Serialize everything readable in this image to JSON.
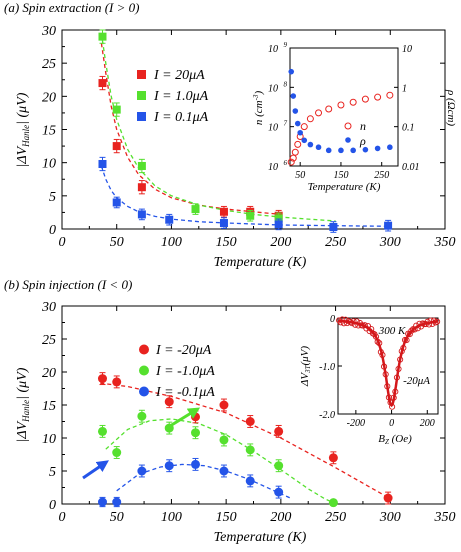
{
  "chart_data": [
    {
      "type": "scatter",
      "panel_title": "(a)  Spin extraction (I > 0)",
      "xlabel": "Temperature (K)",
      "ylabel": "|ΔV",
      "ylabel_sub": "Hanle",
      "ylabel_unit": "| (μV)",
      "xlim": [
        0,
        350
      ],
      "ylim": [
        0,
        30
      ],
      "x_ticks": [
        "0",
        "50",
        "100",
        "150",
        "200",
        "250",
        "300",
        "350"
      ],
      "y_ticks": [
        "0",
        "5",
        "10",
        "15",
        "20",
        "25",
        "30"
      ],
      "legend_position": "top-center",
      "series": [
        {
          "name": "I = 20μA",
          "color": "#e8231f",
          "x": [
            37,
            50,
            73,
            148,
            172,
            198
          ],
          "y": [
            22.0,
            12.5,
            6.3,
            2.6,
            2.6,
            2.0
          ],
          "err": [
            1.0,
            1.0,
            1.0,
            0.8,
            0.8,
            0.8
          ],
          "fit": [
            [
              36,
              28.0
            ],
            [
              40,
              23.5
            ],
            [
              45,
              18.5
            ],
            [
              50,
              15.0
            ],
            [
              60,
              10.8
            ],
            [
              70,
              8.2
            ],
            [
              85,
              6.0
            ],
            [
              100,
              4.7
            ],
            [
              125,
              3.6
            ],
            [
              150,
              3.0
            ],
            [
              175,
              2.6
            ],
            [
              200,
              2.2
            ]
          ]
        },
        {
          "name": "I = 1.0μA",
          "color": "#55e02e",
          "x": [
            37,
            50,
            73,
            122,
            172,
            198
          ],
          "y": [
            29.0,
            18.0,
            9.5,
            3.0,
            2.0,
            1.6
          ],
          "err": [
            1.0,
            1.0,
            1.0,
            0.8,
            0.8,
            0.8
          ],
          "fit": [
            [
              36,
              29.5
            ],
            [
              40,
              25.0
            ],
            [
              45,
              20.0
            ],
            [
              50,
              16.5
            ],
            [
              60,
              12.0
            ],
            [
              70,
              9.2
            ],
            [
              85,
              6.5
            ],
            [
              100,
              5.0
            ],
            [
              125,
              3.6
            ],
            [
              150,
              2.8
            ],
            [
              175,
              2.2
            ],
            [
              200,
              1.8
            ],
            [
              225,
              1.5
            ],
            [
              250,
              1.2
            ]
          ]
        },
        {
          "name": "I = 0.1μA",
          "color": "#2454e8",
          "x": [
            37,
            50,
            73,
            98,
            148,
            198,
            248,
            298
          ],
          "y": [
            9.8,
            4.0,
            2.2,
            1.4,
            0.9,
            0.7,
            0.3,
            0.5
          ],
          "err": [
            1.0,
            0.8,
            0.8,
            0.8,
            0.8,
            0.8,
            0.8,
            0.8
          ],
          "fit": [
            [
              36,
              9.5
            ],
            [
              40,
              7.5
            ],
            [
              45,
              5.8
            ],
            [
              50,
              4.7
            ],
            [
              60,
              3.4
            ],
            [
              70,
              2.6
            ],
            [
              85,
              1.9
            ],
            [
              100,
              1.5
            ],
            [
              125,
              1.1
            ],
            [
              150,
              0.9
            ],
            [
              200,
              0.6
            ],
            [
              250,
              0.5
            ],
            [
              300,
              0.4
            ]
          ]
        }
      ],
      "inset": {
        "type": "scatter",
        "xlabel": "Temperature (K)",
        "ylabel_left": "n (cm",
        "ylabel_left_sup": "-3",
        "ylabel_left_close": ")",
        "ylabel_right": "ρ (Ωcm)",
        "xlim": [
          25,
          290
        ],
        "x_ticks": [
          "50",
          "150",
          "250"
        ],
        "y_left_ticks": [
          {
            "label": "10",
            "sup": "9",
            "exp": 9
          },
          {
            "label": "10",
            "sup": "8",
            "exp": 8
          },
          {
            "label": "10",
            "sup": "7",
            "exp": 7
          },
          {
            "label": "10",
            "sup": "6",
            "exp": 6
          }
        ],
        "y_right_ticks": [
          {
            "label": "10",
            "value": 10
          },
          {
            "label": "1",
            "value": 1
          },
          {
            "label": "0.1",
            "value": 0.1
          },
          {
            "label": "0.01",
            "value": 0.01
          }
        ],
        "y_left_scale": "log",
        "y_right_scale": "log",
        "legend_position": "center-right",
        "series_n": {
          "name": "n",
          "color": "#e8231f",
          "marker": "open-circle",
          "x": [
            28,
            33,
            38,
            44,
            50,
            60,
            75,
            95,
            120,
            150,
            180,
            210,
            240,
            270
          ],
          "y_log10": [
            6.1,
            6.2,
            6.35,
            6.55,
            6.75,
            7.0,
            7.2,
            7.35,
            7.45,
            7.55,
            7.62,
            7.7,
            7.75,
            7.8
          ]
        },
        "series_rho": {
          "name": "ρ",
          "color": "#2454e8",
          "marker": "filled-circle",
          "x": [
            28,
            33,
            38,
            44,
            50,
            60,
            75,
            95,
            120,
            150,
            180,
            210,
            240,
            270
          ],
          "y": [
            2.5,
            0.6,
            0.25,
            0.12,
            0.07,
            0.045,
            0.035,
            0.03,
            0.025,
            0.025,
            0.025,
            0.026,
            0.028,
            0.03
          ]
        }
      }
    },
    {
      "type": "scatter",
      "panel_title": "(b)  Spin injection (I < 0)",
      "xlabel": "Temperature (K)",
      "ylabel": "|ΔV",
      "ylabel_sub": "Hanle",
      "ylabel_unit": "| (μV)",
      "xlim": [
        0,
        350
      ],
      "ylim": [
        0,
        30
      ],
      "x_ticks": [
        "0",
        "50",
        "100",
        "150",
        "200",
        "250",
        "300",
        "350"
      ],
      "y_ticks": [
        "0",
        "5",
        "10",
        "15",
        "20",
        "25",
        "30"
      ],
      "legend_position": "top-center",
      "series": [
        {
          "name": "I = -20μA",
          "color": "#e8231f",
          "x": [
            37,
            50,
            98,
            122,
            148,
            172,
            198,
            248,
            298
          ],
          "y": [
            19.0,
            18.5,
            15.5,
            13.2,
            15.0,
            12.5,
            11.0,
            7.0,
            0.9
          ],
          "err": [
            0.9,
            0.9,
            0.9,
            0.9,
            0.9,
            0.9,
            0.9,
            0.9,
            0.9
          ],
          "fit": [
            [
              35,
              18.3
            ],
            [
              60,
              17.8
            ],
            [
              100,
              16.3
            ],
            [
              150,
              13.8
            ],
            [
              200,
              10.0
            ],
            [
              250,
              5.5
            ],
            [
              300,
              0.8
            ]
          ]
        },
        {
          "name": "I = -1.0μA",
          "color": "#55e02e",
          "x": [
            37,
            50,
            73,
            98,
            122,
            148,
            172,
            198,
            248
          ],
          "y": [
            11.0,
            7.8,
            13.3,
            11.5,
            10.8,
            9.7,
            8.2,
            5.8,
            0.2
          ],
          "err": [
            0.9,
            0.9,
            0.9,
            0.9,
            0.9,
            0.9,
            0.9,
            0.9,
            0.4
          ],
          "fit": [
            [
              40,
              8.3
            ],
            [
              60,
              11.3
            ],
            [
              80,
              12.6
            ],
            [
              100,
              12.9
            ],
            [
              125,
              12.2
            ],
            [
              150,
              10.5
            ],
            [
              175,
              8.0
            ],
            [
              200,
              5.2
            ],
            [
              225,
              2.3
            ],
            [
              240,
              0.8
            ],
            [
              248,
              0.2
            ]
          ]
        },
        {
          "name": "I = -0.1μA",
          "color": "#2454e8",
          "x": [
            37,
            50,
            73,
            98,
            122,
            148,
            172,
            198
          ],
          "y": [
            0.3,
            0.3,
            5.0,
            5.8,
            6.0,
            5.0,
            3.5,
            1.8
          ],
          "err": [
            0.7,
            0.7,
            0.9,
            0.9,
            0.9,
            0.9,
            0.9,
            0.9
          ],
          "fit": [
            [
              50,
              2.0
            ],
            [
              70,
              4.5
            ],
            [
              90,
              5.6
            ],
            [
              110,
              6.0
            ],
            [
              130,
              5.8
            ],
            [
              150,
              5.0
            ],
            [
              170,
              3.8
            ],
            [
              190,
              2.3
            ],
            [
              210,
              0.8
            ]
          ]
        }
      ],
      "inset": {
        "type": "line",
        "annotation_temp": "300 K",
        "annotation_current": "-20μA",
        "xlabel_main": "B",
        "xlabel_sub": "Z",
        "xlabel_unit": " (Oe)",
        "ylabel_main": "ΔV",
        "ylabel_sub": "3T",
        "ylabel_unit": "(μV)",
        "xlim": [
          -300,
          260
        ],
        "ylim": [
          -2.0,
          0.0
        ],
        "x_ticks": [
          {
            "label": "-200",
            "value": -200
          },
          {
            "label": "0",
            "value": 0
          },
          {
            "label": "200",
            "value": 200
          }
        ],
        "y_ticks": [
          {
            "label": "0",
            "value": 0
          },
          {
            "label": "-1.0",
            "value": -1.0
          },
          {
            "label": "-2.0",
            "value": -2.0
          }
        ]
      }
    }
  ]
}
